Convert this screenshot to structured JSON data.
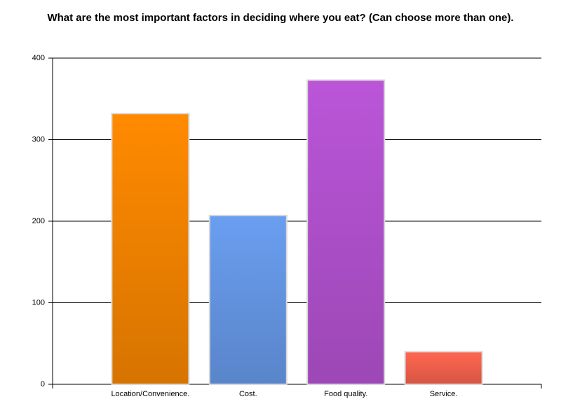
{
  "chart_data": {
    "type": "bar",
    "title": "What are the most important factors in deciding where you eat? (Can choose more than one).",
    "categories": [
      "Location/Convenience.",
      "Cost.",
      "Food quality.",
      "Service."
    ],
    "values": [
      332,
      207,
      373,
      40
    ],
    "colors": [
      "#ff8a00",
      "#6a9ef0",
      "#ba55d8",
      "#ff6650"
    ],
    "ylim": [
      0,
      400
    ],
    "yticks": [
      0,
      100,
      200,
      300,
      400
    ],
    "grid": true
  }
}
